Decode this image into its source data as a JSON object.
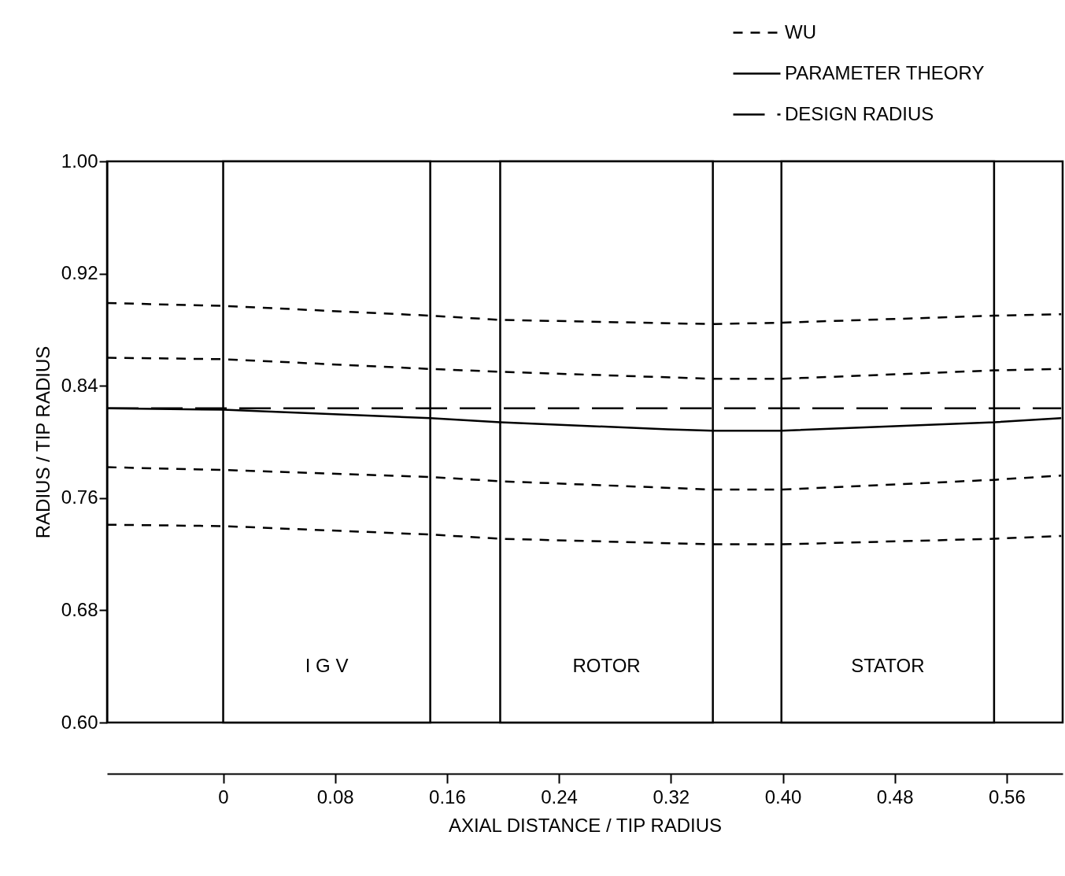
{
  "chart_data": {
    "type": "line",
    "xlabel": "AXIAL DISTANCE / TIP RADIUS",
    "ylabel": "RADIUS / TIP RADIUS",
    "xlim": [
      -0.083,
      0.6
    ],
    "ylim": [
      0.6,
      1.0
    ],
    "xticks": [
      {
        "value": 0,
        "label": "0"
      },
      0.08,
      0.16,
      0.24,
      0.32,
      {
        "value": 0.4,
        "label": "0.40"
      },
      0.48,
      0.56
    ],
    "yticks": [
      {
        "value": 0.6,
        "label": "0.60"
      },
      0.68,
      0.76,
      0.84,
      0.92,
      {
        "value": 1.0,
        "label": "1.00"
      }
    ],
    "legend": "top right",
    "grid": false,
    "bands": [
      {
        "axis": "x",
        "from": 0,
        "to": 0.148,
        "label": "I G V",
        "color": "#ffffff"
      },
      {
        "axis": "x",
        "from": 0.198,
        "to": 0.35,
        "label": "ROTOR",
        "color": "#ffffff"
      },
      {
        "axis": "x",
        "from": 0.399,
        "to": 0.551,
        "label": "STATOR",
        "color": "#ffffff"
      }
    ],
    "x": [
      -0.083,
      0,
      0.148,
      0.198,
      0.35,
      0.399,
      0.551,
      0.599
    ],
    "series": [
      {
        "name": "WU",
        "color": "#000000",
        "line_style": "dashed",
        "values": [
          0.899,
          0.897,
          0.89,
          0.887,
          0.884,
          0.885,
          0.89,
          0.891
        ]
      },
      {
        "color": "#000000",
        "line_style": "dashed",
        "values": [
          0.86,
          0.859,
          0.852,
          0.85,
          0.845,
          0.845,
          0.851,
          0.852
        ]
      },
      {
        "color": "#000000",
        "line_style": "dashed",
        "values": [
          0.782,
          0.78,
          0.775,
          0.772,
          0.766,
          0.766,
          0.773,
          0.776
        ]
      },
      {
        "color": "#000000",
        "line_style": "dashed",
        "values": [
          0.741,
          0.74,
          0.734,
          0.731,
          0.727,
          0.727,
          0.731,
          0.733
        ]
      },
      {
        "name": "PARAMETER THEORY",
        "color": "#000000",
        "line_style": "solid",
        "x": [
          -0.083,
          0,
          0.148,
          0.198,
          0.318,
          0.35,
          0.399,
          0.551,
          0.599
        ],
        "values": [
          0.824,
          0.823,
          0.817,
          0.814,
          0.809,
          0.808,
          0.808,
          0.814,
          0.817
        ]
      },
      {
        "name": "DESIGN RADIUS",
        "color": "#000000",
        "line_style": "dashed",
        "x": [
          -0.083,
          0.599
        ],
        "values": [
          0.824,
          0.824
        ]
      }
    ]
  }
}
